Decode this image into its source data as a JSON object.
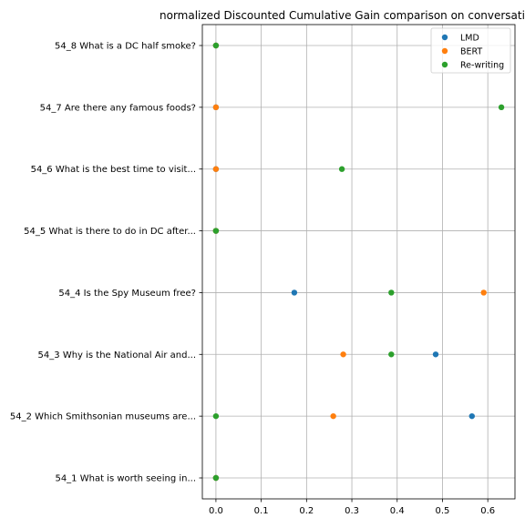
{
  "chart_data": {
    "type": "scatter",
    "title": "normalized Discounted Cumulative Gain comparison on conversatio",
    "xlabel": "",
    "ylabel": "",
    "xlim": [
      -0.03,
      0.66
    ],
    "grid": true,
    "legend": "top-right",
    "xticks": [
      0.0,
      0.1,
      0.2,
      0.3,
      0.4,
      0.5,
      0.6
    ],
    "xtick_labels": [
      "0.0",
      "0.1",
      "0.2",
      "0.3",
      "0.4",
      "0.5",
      "0.6"
    ],
    "categories": [
      "54_1 What is worth seeing in...",
      "54_2 Which Smithsonian museums are...",
      "54_3 Why is the National Air and...",
      "54_4 Is the Spy Museum free?",
      "54_5 What is there to do in DC after...",
      "54_6 What is the best time to visit...",
      "54_7 Are there any famous foods?",
      "54_8 What is a DC half smoke?"
    ],
    "series": [
      {
        "name": "LMD",
        "color": "#1f77b4",
        "values": [
          0.0,
          0.565,
          0.485,
          0.173,
          0.0,
          0.0,
          0.0,
          0.0
        ]
      },
      {
        "name": "BERT",
        "color": "#ff7f0e",
        "values": [
          0.0,
          0.259,
          0.281,
          0.591,
          0.0,
          0.0,
          0.0,
          0.0
        ]
      },
      {
        "name": "Re-writing",
        "color": "#2ca02c",
        "values": [
          0.0,
          0.0,
          0.387,
          0.387,
          0.0,
          0.278,
          0.63,
          0.0
        ]
      }
    ]
  }
}
